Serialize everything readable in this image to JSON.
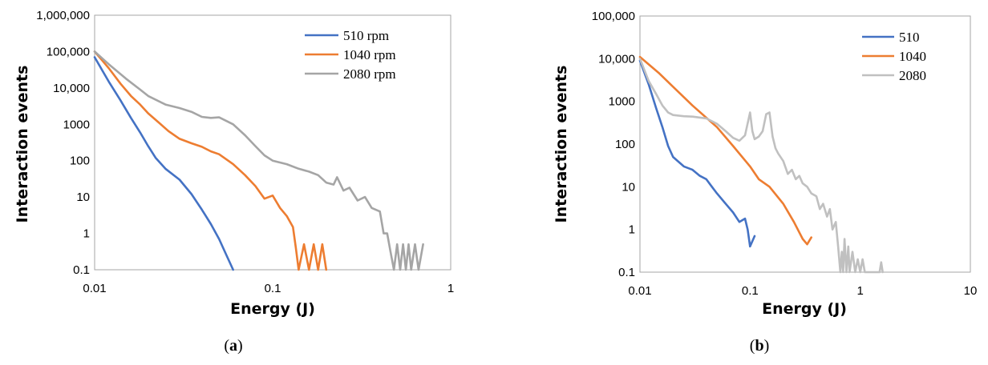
{
  "chart_data": [
    {
      "id": "a",
      "type": "line",
      "xscale": "log",
      "yscale": "log",
      "xlim": [
        0.01,
        1
      ],
      "ylim": [
        0.1,
        1000000
      ],
      "xlabel": "Energy (J)",
      "ylabel": "Interaction events",
      "panel": {
        "open": "(",
        "letter": "a",
        "close": ")"
      },
      "xticks": [
        {
          "v": 0.01,
          "label": "0.01"
        },
        {
          "v": 0.1,
          "label": "0.1"
        },
        {
          "v": 1,
          "label": "1"
        }
      ],
      "yticks": [
        {
          "v": 0.1,
          "label": "0.1"
        },
        {
          "v": 1,
          "label": "1"
        },
        {
          "v": 10,
          "label": "10"
        },
        {
          "v": 100,
          "label": "100"
        },
        {
          "v": 1000,
          "label": "1000"
        },
        {
          "v": 10000,
          "label": "10,000"
        },
        {
          "v": 100000,
          "label": "100,000"
        },
        {
          "v": 1000000,
          "label": "1,000,000"
        }
      ],
      "legend_position": "top-right",
      "series": [
        {
          "name": "510 rpm",
          "color": "#4472c4",
          "points": [
            [
              0.01,
              70000
            ],
            [
              0.012,
              15000
            ],
            [
              0.014,
              4500
            ],
            [
              0.016,
              1500
            ],
            [
              0.018,
              600
            ],
            [
              0.02,
              250
            ],
            [
              0.022,
              120
            ],
            [
              0.025,
              60
            ],
            [
              0.03,
              30
            ],
            [
              0.035,
              12
            ],
            [
              0.04,
              4.5
            ],
            [
              0.045,
              1.8
            ],
            [
              0.05,
              0.7
            ],
            [
              0.055,
              0.25
            ],
            [
              0.06,
              0.1
            ]
          ]
        },
        {
          "name": "1040 rpm",
          "color": "#ed7d31",
          "points": [
            [
              0.01,
              100000
            ],
            [
              0.012,
              35000
            ],
            [
              0.014,
              13000
            ],
            [
              0.016,
              6000
            ],
            [
              0.018,
              3500
            ],
            [
              0.02,
              2000
            ],
            [
              0.023,
              1100
            ],
            [
              0.026,
              650
            ],
            [
              0.03,
              400
            ],
            [
              0.035,
              300
            ],
            [
              0.04,
              240
            ],
            [
              0.045,
              180
            ],
            [
              0.05,
              150
            ],
            [
              0.06,
              80
            ],
            [
              0.07,
              40
            ],
            [
              0.08,
              20
            ],
            [
              0.09,
              9
            ],
            [
              0.1,
              11
            ],
            [
              0.11,
              5
            ],
            [
              0.12,
              3
            ],
            [
              0.13,
              1.5
            ],
            [
              0.135,
              0.4
            ],
            [
              0.14,
              0.1
            ],
            [
              0.15,
              0.5
            ],
            [
              0.16,
              0.1
            ],
            [
              0.17,
              0.5
            ],
            [
              0.18,
              0.1
            ],
            [
              0.19,
              0.5
            ],
            [
              0.2,
              0.1
            ]
          ]
        },
        {
          "name": "2080 rpm",
          "color": "#a5a5a5",
          "points": [
            [
              0.01,
              100000
            ],
            [
              0.012,
              45000
            ],
            [
              0.015,
              18000
            ],
            [
              0.018,
              9000
            ],
            [
              0.02,
              6000
            ],
            [
              0.025,
              3500
            ],
            [
              0.03,
              2800
            ],
            [
              0.035,
              2200
            ],
            [
              0.04,
              1600
            ],
            [
              0.045,
              1500
            ],
            [
              0.05,
              1550
            ],
            [
              0.06,
              1000
            ],
            [
              0.07,
              500
            ],
            [
              0.08,
              250
            ],
            [
              0.09,
              140
            ],
            [
              0.1,
              100
            ],
            [
              0.12,
              80
            ],
            [
              0.14,
              60
            ],
            [
              0.16,
              50
            ],
            [
              0.18,
              40
            ],
            [
              0.2,
              25
            ],
            [
              0.22,
              22
            ],
            [
              0.23,
              35
            ],
            [
              0.25,
              15
            ],
            [
              0.27,
              18
            ],
            [
              0.3,
              8
            ],
            [
              0.33,
              10
            ],
            [
              0.36,
              5
            ],
            [
              0.4,
              4
            ],
            [
              0.42,
              1
            ],
            [
              0.44,
              1
            ],
            [
              0.46,
              0.3
            ],
            [
              0.48,
              0.1
            ],
            [
              0.5,
              0.5
            ],
            [
              0.52,
              0.1
            ],
            [
              0.54,
              0.5
            ],
            [
              0.56,
              0.1
            ],
            [
              0.58,
              0.5
            ],
            [
              0.6,
              0.1
            ],
            [
              0.63,
              0.5
            ],
            [
              0.66,
              0.1
            ],
            [
              0.7,
              0.5
            ]
          ]
        }
      ]
    },
    {
      "id": "b",
      "type": "line",
      "xscale": "log",
      "yscale": "log",
      "xlim": [
        0.01,
        10
      ],
      "ylim": [
        0.1,
        100000
      ],
      "xlabel": "Energy (J)",
      "ylabel": "Interaction events",
      "panel": {
        "open": "(",
        "letter": "b",
        "close": ")"
      },
      "xticks": [
        {
          "v": 0.01,
          "label": "0.01"
        },
        {
          "v": 0.1,
          "label": "0.1"
        },
        {
          "v": 1,
          "label": "1"
        },
        {
          "v": 10,
          "label": "10"
        }
      ],
      "yticks": [
        {
          "v": 0.1,
          "label": "0.1"
        },
        {
          "v": 1,
          "label": "1"
        },
        {
          "v": 10,
          "label": "10"
        },
        {
          "v": 100,
          "label": "100"
        },
        {
          "v": 1000,
          "label": "1000"
        },
        {
          "v": 10000,
          "label": "10,000"
        },
        {
          "v": 100000,
          "label": "100,000"
        }
      ],
      "legend_position": "top-right",
      "series": [
        {
          "name": "510",
          "color": "#4472c4",
          "points": [
            [
              0.01,
              9000
            ],
            [
              0.012,
              2500
            ],
            [
              0.014,
              700
            ],
            [
              0.016,
              250
            ],
            [
              0.018,
              90
            ],
            [
              0.02,
              50
            ],
            [
              0.025,
              30
            ],
            [
              0.03,
              25
            ],
            [
              0.035,
              18
            ],
            [
              0.04,
              15
            ],
            [
              0.045,
              10
            ],
            [
              0.05,
              7
            ],
            [
              0.06,
              4
            ],
            [
              0.07,
              2.5
            ],
            [
              0.08,
              1.5
            ],
            [
              0.09,
              1.8
            ],
            [
              0.095,
              1
            ],
            [
              0.1,
              0.4
            ],
            [
              0.11,
              0.7
            ]
          ]
        },
        {
          "name": "1040",
          "color": "#ed7d31",
          "points": [
            [
              0.01,
              11000
            ],
            [
              0.015,
              4500
            ],
            [
              0.02,
              2200
            ],
            [
              0.03,
              800
            ],
            [
              0.05,
              250
            ],
            [
              0.07,
              90
            ],
            [
              0.1,
              30
            ],
            [
              0.12,
              15
            ],
            [
              0.15,
              10
            ],
            [
              0.2,
              4
            ],
            [
              0.25,
              1.5
            ],
            [
              0.3,
              0.6
            ],
            [
              0.33,
              0.45
            ],
            [
              0.36,
              0.65
            ]
          ]
        },
        {
          "name": "2080",
          "color": "#c0c0c0",
          "points": [
            [
              0.01,
              10000
            ],
            [
              0.012,
              3000
            ],
            [
              0.014,
              1500
            ],
            [
              0.016,
              800
            ],
            [
              0.018,
              550
            ],
            [
              0.02,
              480
            ],
            [
              0.025,
              450
            ],
            [
              0.03,
              440
            ],
            [
              0.04,
              400
            ],
            [
              0.05,
              300
            ],
            [
              0.06,
              200
            ],
            [
              0.07,
              140
            ],
            [
              0.08,
              120
            ],
            [
              0.09,
              160
            ],
            [
              0.1,
              550
            ],
            [
              0.105,
              200
            ],
            [
              0.11,
              130
            ],
            [
              0.12,
              150
            ],
            [
              0.13,
              200
            ],
            [
              0.14,
              500
            ],
            [
              0.15,
              550
            ],
            [
              0.16,
              150
            ],
            [
              0.17,
              80
            ],
            [
              0.18,
              60
            ],
            [
              0.2,
              40
            ],
            [
              0.22,
              20
            ],
            [
              0.24,
              25
            ],
            [
              0.26,
              15
            ],
            [
              0.28,
              18
            ],
            [
              0.3,
              12
            ],
            [
              0.33,
              10
            ],
            [
              0.36,
              7
            ],
            [
              0.4,
              6
            ],
            [
              0.43,
              3
            ],
            [
              0.46,
              4
            ],
            [
              0.5,
              2
            ],
            [
              0.53,
              3
            ],
            [
              0.56,
              1
            ],
            [
              0.6,
              1.5
            ],
            [
              0.63,
              0.4
            ],
            [
              0.66,
              0.1
            ],
            [
              0.68,
              0.3
            ],
            [
              0.7,
              0.1
            ],
            [
              0.72,
              0.6
            ],
            [
              0.75,
              0.1
            ],
            [
              0.78,
              0.4
            ],
            [
              0.8,
              0.1
            ],
            [
              0.85,
              0.3
            ],
            [
              0.9,
              0.1
            ],
            [
              0.95,
              0.2
            ],
            [
              1.0,
              0.1
            ],
            [
              1.05,
              0.2
            ],
            [
              1.1,
              0.1
            ],
            [
              1.3,
              0.1
            ],
            [
              1.5,
              0.1
            ],
            [
              1.55,
              0.17
            ],
            [
              1.6,
              0.1
            ]
          ]
        }
      ]
    }
  ]
}
